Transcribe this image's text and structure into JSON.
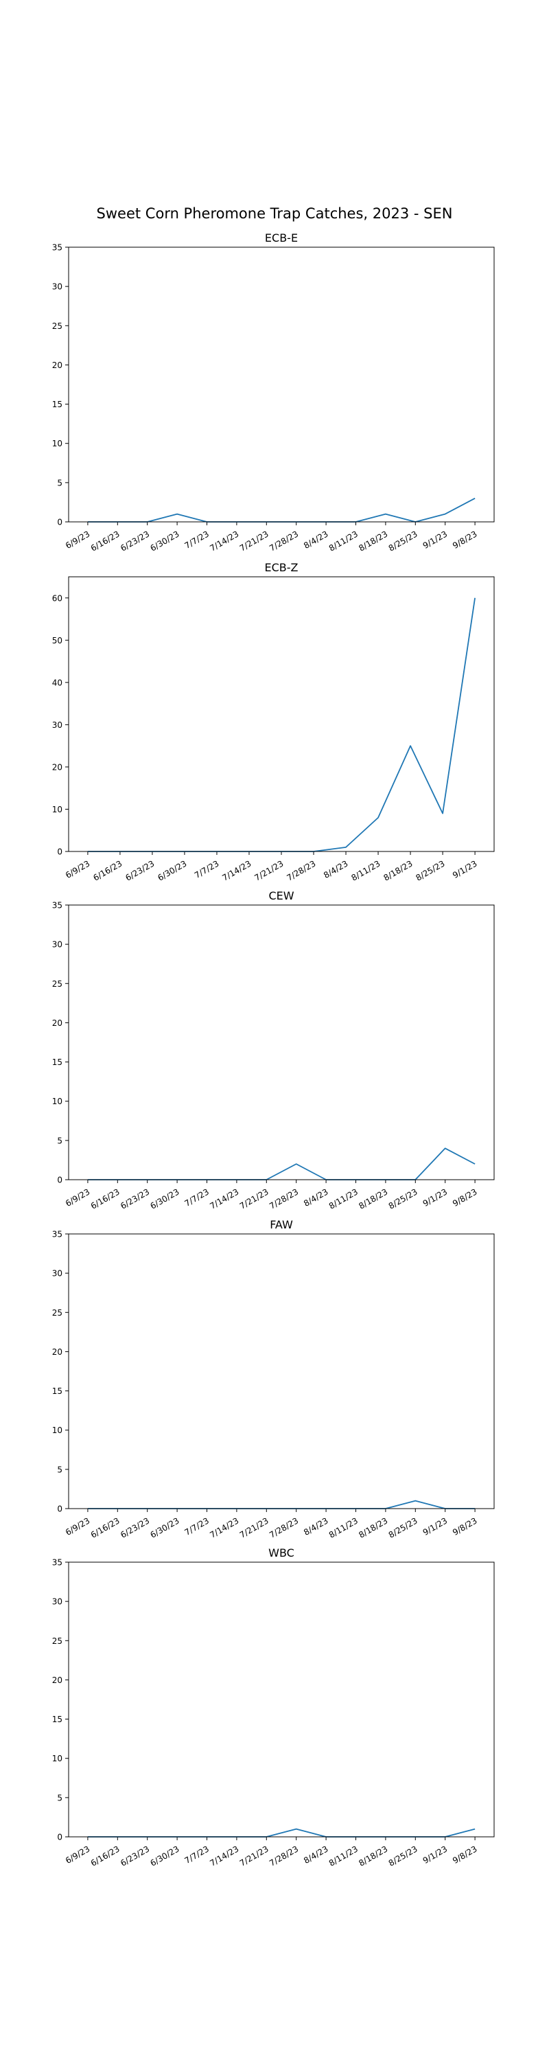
{
  "figure": {
    "title": "Sweet Corn Pheromone Trap Catches, 2023 - SEN",
    "line_color": "#1f77b4"
  },
  "chart_data": [
    {
      "type": "line",
      "title": "ECB-E",
      "categories": [
        "6/9/23",
        "6/16/23",
        "6/23/23",
        "6/30/23",
        "7/7/23",
        "7/14/23",
        "7/21/23",
        "7/28/23",
        "8/4/23",
        "8/11/23",
        "8/18/23",
        "8/25/23",
        "9/1/23",
        "9/8/23"
      ],
      "values": [
        0,
        0,
        0,
        1,
        0,
        0,
        0,
        0,
        0,
        0,
        1,
        0,
        1,
        3
      ],
      "ylim": [
        0,
        35
      ],
      "yticks": [
        0,
        5,
        10,
        15,
        20,
        25,
        30,
        35
      ],
      "grid": false
    },
    {
      "type": "line",
      "title": "ECB-Z",
      "categories": [
        "6/9/23",
        "6/16/23",
        "6/23/23",
        "6/30/23",
        "7/7/23",
        "7/14/23",
        "7/21/23",
        "7/28/23",
        "8/4/23",
        "8/11/23",
        "8/18/23",
        "8/25/23",
        "9/1/23"
      ],
      "values": [
        0,
        0,
        0,
        0,
        0,
        0,
        0,
        0,
        1,
        8,
        25,
        9,
        60
      ],
      "ylim": [
        0,
        65
      ],
      "yticks": [
        0,
        10,
        20,
        30,
        40,
        50,
        60
      ],
      "grid": false
    },
    {
      "type": "line",
      "title": "CEW",
      "categories": [
        "6/9/23",
        "6/16/23",
        "6/23/23",
        "6/30/23",
        "7/7/23",
        "7/14/23",
        "7/21/23",
        "7/28/23",
        "8/4/23",
        "8/11/23",
        "8/18/23",
        "8/25/23",
        "9/1/23",
        "9/8/23"
      ],
      "values": [
        0,
        0,
        0,
        0,
        0,
        0,
        0,
        2,
        0,
        0,
        0,
        0,
        4,
        2
      ],
      "ylim": [
        0,
        35
      ],
      "yticks": [
        0,
        5,
        10,
        15,
        20,
        25,
        30,
        35
      ],
      "grid": false
    },
    {
      "type": "line",
      "title": "FAW",
      "categories": [
        "6/9/23",
        "6/16/23",
        "6/23/23",
        "6/30/23",
        "7/7/23",
        "7/14/23",
        "7/21/23",
        "7/28/23",
        "8/4/23",
        "8/11/23",
        "8/18/23",
        "8/25/23",
        "9/1/23",
        "9/8/23"
      ],
      "values": [
        0,
        0,
        0,
        0,
        0,
        0,
        0,
        0,
        0,
        0,
        0,
        1,
        0,
        0
      ],
      "ylim": [
        0,
        35
      ],
      "yticks": [
        0,
        5,
        10,
        15,
        20,
        25,
        30,
        35
      ],
      "grid": false
    },
    {
      "type": "line",
      "title": "WBC",
      "categories": [
        "6/9/23",
        "6/16/23",
        "6/23/23",
        "6/30/23",
        "7/7/23",
        "7/14/23",
        "7/21/23",
        "7/28/23",
        "8/4/23",
        "8/11/23",
        "8/18/23",
        "8/25/23",
        "9/1/23",
        "9/8/23"
      ],
      "values": [
        0,
        0,
        0,
        0,
        0,
        0,
        0,
        1,
        0,
        0,
        0,
        0,
        0,
        1
      ],
      "ylim": [
        0,
        35
      ],
      "yticks": [
        0,
        5,
        10,
        15,
        20,
        25,
        30,
        35
      ],
      "grid": false
    }
  ]
}
